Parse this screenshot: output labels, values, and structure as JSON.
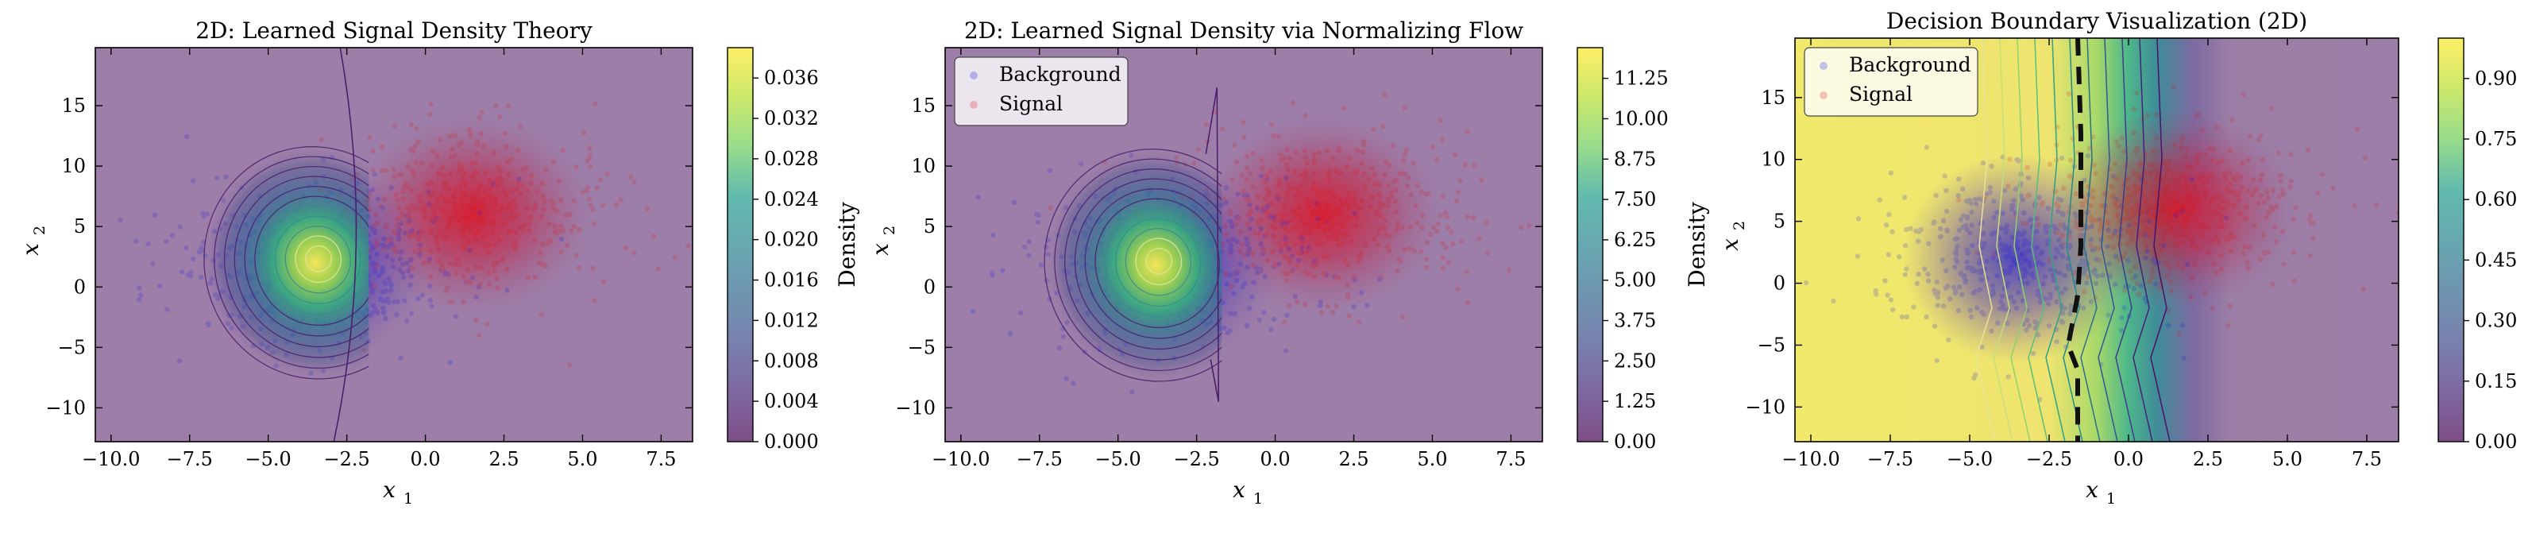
{
  "chart_data": [
    {
      "type": "heatmap",
      "title": "2D: Learned Signal Density Theory",
      "xlabel": "x",
      "xlabel_sub": "1",
      "ylabel": "x",
      "ylabel_sub": "2",
      "xlim": [
        -10.5,
        8.5
      ],
      "ylim": [
        -12.8,
        19.8
      ],
      "xticks": [
        -10.0,
        -7.5,
        -5.0,
        -2.5,
        0.0,
        2.5,
        5.0,
        7.5
      ],
      "xtick_labels": [
        "−10.0",
        "−7.5",
        "−5.0",
        "−2.5",
        "0.0",
        "2.5",
        "5.0",
        "7.5"
      ],
      "yticks": [
        -10,
        -5,
        0,
        5,
        10,
        15
      ],
      "ytick_labels": [
        "−10",
        "−5",
        "0",
        "5",
        "10",
        "15"
      ],
      "colorbar": {
        "label": "Density",
        "range": [
          0.0,
          0.039
        ],
        "ticks": [
          0.0,
          0.004,
          0.008,
          0.012,
          0.016,
          0.02,
          0.024,
          0.028,
          0.032,
          0.036
        ],
        "tick_labels": [
          "0.000",
          "0.004",
          "0.008",
          "0.012",
          "0.016",
          "0.020",
          "0.024",
          "0.028",
          "0.032",
          "0.036"
        ]
      },
      "density_peak": {
        "x": -3.5,
        "y": 2.0,
        "value": 0.038
      },
      "cut_x": -1.8,
      "scatter_series": [
        {
          "color": "#1010e0",
          "center": [
            -3.5,
            2.0
          ]
        },
        {
          "color": "#e01010",
          "center": [
            1.5,
            6.0
          ]
        }
      ],
      "legend": null,
      "grid": false
    },
    {
      "type": "heatmap",
      "title": "2D: Learned Signal Density via Normalizing Flow",
      "xlabel": "x",
      "xlabel_sub": "1",
      "ylabel": "x",
      "ylabel_sub": "2",
      "xlim": [
        -10.5,
        8.5
      ],
      "ylim": [
        -12.8,
        19.8
      ],
      "xticks": [
        -10.0,
        -7.5,
        -5.0,
        -2.5,
        0.0,
        2.5,
        5.0,
        7.5
      ],
      "xtick_labels": [
        "−10.0",
        "−7.5",
        "−5.0",
        "−2.5",
        "0.0",
        "2.5",
        "5.0",
        "7.5"
      ],
      "yticks": [
        -10,
        -5,
        0,
        5,
        10,
        15
      ],
      "ytick_labels": [
        "−10",
        "−5",
        "0",
        "5",
        "10",
        "15"
      ],
      "colorbar": {
        "label": "Density",
        "range": [
          0.0,
          12.2
        ],
        "ticks": [
          0.0,
          1.25,
          2.5,
          3.75,
          5.0,
          6.25,
          7.5,
          8.75,
          10.0,
          11.25
        ],
        "tick_labels": [
          "0.00",
          "1.25",
          "2.50",
          "3.75",
          "5.00",
          "6.25",
          "7.50",
          "8.75",
          "10.00",
          "11.25"
        ]
      },
      "density_peak": {
        "x": -3.8,
        "y": 1.8,
        "value": 11.5
      },
      "cut_x": -1.7,
      "scatter_series": [
        {
          "name": "Background",
          "color": "#1010e0",
          "center": [
            -3.5,
            2.0
          ]
        },
        {
          "name": "Signal",
          "color": "#e01010",
          "center": [
            1.5,
            6.0
          ]
        }
      ],
      "legend": {
        "placement": "upper-left",
        "entries": [
          "Background",
          "Signal"
        ]
      },
      "grid": false
    },
    {
      "type": "heatmap",
      "title": "Decision Boundary Visualization (2D)",
      "xlabel": "x",
      "xlabel_sub": "1",
      "ylabel": "x",
      "ylabel_sub": "2",
      "xlim": [
        -10.5,
        8.5
      ],
      "ylim": [
        -12.8,
        19.8
      ],
      "xticks": [
        -10.0,
        -7.5,
        -5.0,
        -2.5,
        0.0,
        2.5,
        5.0,
        7.5
      ],
      "xtick_labels": [
        "−10.0",
        "−7.5",
        "−5.0",
        "−2.5",
        "0.0",
        "2.5",
        "5.0",
        "7.5"
      ],
      "yticks": [
        -10,
        -5,
        0,
        5,
        10,
        15
      ],
      "ytick_labels": [
        "−10",
        "−5",
        "0",
        "5",
        "10",
        "15"
      ],
      "colorbar": {
        "label": "",
        "range": [
          0.0,
          1.0
        ],
        "ticks": [
          0.0,
          0.15,
          0.3,
          0.45,
          0.6,
          0.75,
          0.9
        ],
        "tick_labels": [
          "0.00",
          "0.15",
          "0.30",
          "0.45",
          "0.60",
          "0.75",
          "0.90"
        ]
      },
      "decision_boundary": {
        "style": "dashed",
        "points": [
          [
            -1.6,
            19.8
          ],
          [
            -1.5,
            12
          ],
          [
            -1.5,
            3
          ],
          [
            -1.6,
            -1
          ],
          [
            -1.9,
            -5
          ],
          [
            -1.6,
            -7
          ],
          [
            -1.6,
            -12.8
          ]
        ]
      },
      "scatter_series": [
        {
          "name": "Background",
          "color": "#1010e0",
          "center": [
            -3.5,
            2.0
          ]
        },
        {
          "name": "Signal",
          "color": "#e01010",
          "center": [
            1.5,
            6.0
          ]
        }
      ],
      "legend": {
        "placement": "upper-left",
        "entries": [
          "Background",
          "Signal"
        ]
      },
      "grid": false
    }
  ],
  "colors": {
    "viridis_low": "#440154",
    "viridis_mid": "#21918c",
    "viridis_high": "#fde725",
    "background_points": "#1010e0",
    "signal_points": "#e01010"
  }
}
